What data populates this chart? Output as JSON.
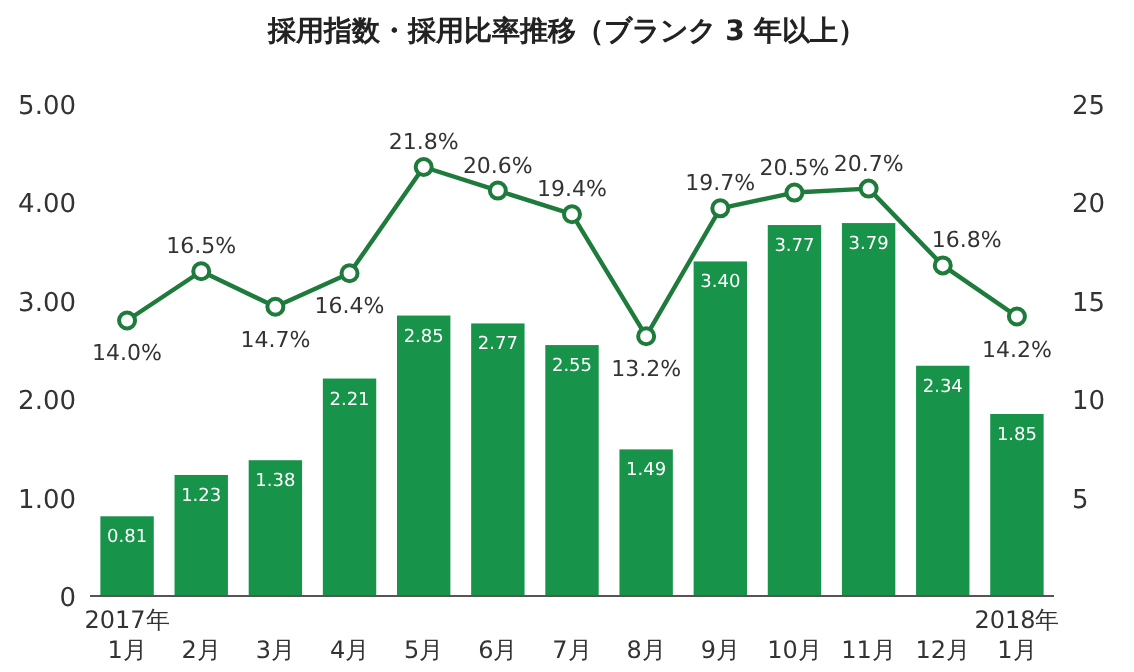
{
  "chart_data": {
    "type": "bar",
    "title": "採用指数・採用比率推移（ブランク 3 年以上）",
    "categories": [
      "2017年\n1月",
      "2月",
      "3月",
      "4月",
      "5月",
      "6月",
      "7月",
      "8月",
      "9月",
      "10月",
      "11月",
      "12月",
      "2018年\n1月"
    ],
    "series": [
      {
        "color": "#17944a",
        "values": [
          0.81,
          1.23,
          1.38,
          2.21,
          2.85,
          2.77,
          2.55,
          1.49,
          3.4,
          3.77,
          3.79,
          2.34,
          1.85
        ],
        "value_labels": [
          "0.81",
          "1.23",
          "1.38",
          "2.21",
          "2.85",
          "2.77",
          "2.55",
          "1.49",
          "3.40",
          "3.77",
          "3.79",
          "2.34",
          "1.85"
        ]
      },
      {
        "type": "line",
        "axis": "y2",
        "color": "#1e7b3c",
        "marker": "circle",
        "values": [
          14.0,
          16.5,
          14.7,
          16.4,
          21.8,
          20.6,
          19.4,
          13.2,
          19.7,
          20.5,
          20.7,
          16.8,
          14.2
        ],
        "value_labels": [
          "14.0%",
          "16.5%",
          "14.7%",
          "16.4%",
          "21.8%",
          "20.6%",
          "19.4%",
          "13.2%",
          "19.7%",
          "20.5%",
          "20.7%",
          "16.8%",
          "14.2%"
        ]
      }
    ],
    "ylim": [
      0,
      5
    ],
    "yticks": [
      0,
      {
        "value": 1,
        "label": "1.00"
      },
      {
        "value": 2,
        "label": "2.00"
      },
      {
        "value": 3,
        "label": "3.00"
      },
      {
        "value": 4,
        "label": "4.00"
      },
      {
        "value": 5,
        "label": "5.00"
      }
    ],
    "y2lim": [
      0,
      25
    ],
    "y2ticks": [
      5,
      10,
      15,
      20,
      25
    ],
    "grid": false
  }
}
